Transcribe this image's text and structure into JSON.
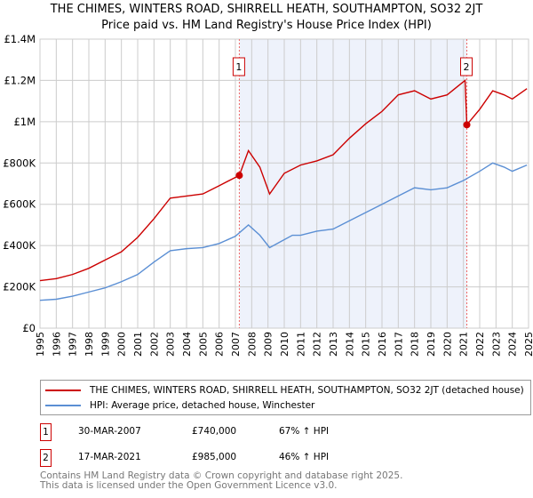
{
  "chart_data": {
    "type": "line",
    "title": "THE CHIMES, WINTERS ROAD, SHIRRELL HEATH, SOUTHAMPTON, SO32 2JT",
    "subtitle": "Price paid vs. HM Land Registry's House Price Index (HPI)",
    "xlim": [
      1995,
      2025
    ],
    "ylim": [
      0,
      1400000
    ],
    "yticks": [
      {
        "v": 0,
        "label": "£0"
      },
      {
        "v": 200000,
        "label": "£200K"
      },
      {
        "v": 400000,
        "label": "£400K"
      },
      {
        "v": 600000,
        "label": "£600K"
      },
      {
        "v": 800000,
        "label": "£800K"
      },
      {
        "v": 1000000,
        "label": "£1M"
      },
      {
        "v": 1200000,
        "label": "£1.2M"
      },
      {
        "v": 1400000,
        "label": "£1.4M"
      }
    ],
    "xticks": [
      "1995",
      "1996",
      "1997",
      "1998",
      "1999",
      "2000",
      "2001",
      "2002",
      "2003",
      "2004",
      "2005",
      "2006",
      "2007",
      "2008",
      "2009",
      "2010",
      "2011",
      "2012",
      "2013",
      "2014",
      "2015",
      "2016",
      "2017",
      "2018",
      "2019",
      "2020",
      "2021",
      "2022",
      "2023",
      "2024",
      "2025"
    ],
    "grid": true,
    "shaded_range": [
      2007.24,
      2021.21
    ],
    "series": [
      {
        "name": "THE CHIMES, WINTERS ROAD, SHIRRELL HEATH, SOUTHAMPTON, SO32 2JT (detached house)",
        "color": "#cc0000",
        "x": [
          1995,
          1996,
          1997,
          1998,
          1999,
          2000,
          2001,
          2002,
          2003,
          2004,
          2005,
          2006,
          2007.24,
          2007.8,
          2008.5,
          2009.1,
          2010,
          2011,
          2012,
          2013,
          2014,
          2015,
          2016,
          2017,
          2018,
          2019,
          2020,
          2021.1,
          2021.21,
          2022,
          2022.8,
          2023.5,
          2024,
          2024.9
        ],
        "y": [
          230000,
          240000,
          260000,
          290000,
          330000,
          370000,
          440000,
          530000,
          630000,
          640000,
          650000,
          690000,
          740000,
          860000,
          780000,
          650000,
          750000,
          790000,
          810000,
          840000,
          920000,
          990000,
          1050000,
          1130000,
          1150000,
          1110000,
          1130000,
          1200000,
          985000,
          1060000,
          1150000,
          1130000,
          1110000,
          1160000
        ]
      },
      {
        "name": "HPI: Average price, detached house, Winchester",
        "color": "#5b8fd4",
        "x": [
          1995,
          1996,
          1997,
          1998,
          1999,
          2000,
          2001,
          2002,
          2003,
          2004,
          2005,
          2006,
          2007,
          2007.8,
          2008.5,
          2009.1,
          2009.8,
          2010.5,
          2011,
          2012,
          2013,
          2014,
          2015,
          2016,
          2017,
          2018,
          2019,
          2020,
          2021,
          2022,
          2022.8,
          2023.5,
          2024,
          2024.9
        ],
        "y": [
          135000,
          140000,
          155000,
          175000,
          195000,
          225000,
          260000,
          320000,
          375000,
          385000,
          390000,
          410000,
          445000,
          500000,
          450000,
          390000,
          420000,
          450000,
          450000,
          470000,
          480000,
          520000,
          560000,
          600000,
          640000,
          680000,
          670000,
          680000,
          715000,
          760000,
          800000,
          780000,
          760000,
          790000
        ]
      }
    ],
    "annotations": [
      {
        "label": "1",
        "x": 2007.24,
        "y": 740000
      },
      {
        "label": "2",
        "x": 2021.21,
        "y": 985000
      }
    ]
  },
  "legend": [
    "THE CHIMES, WINTERS ROAD, SHIRRELL HEATH, SOUTHAMPTON, SO32 2JT (detached house)",
    "HPI: Average price, detached house, Winchester"
  ],
  "sales": [
    {
      "n": "1",
      "date": "30-MAR-2007",
      "price": "£740,000",
      "hpi": "67% ↑ HPI"
    },
    {
      "n": "2",
      "date": "17-MAR-2021",
      "price": "£985,000",
      "hpi": "46% ↑ HPI"
    }
  ],
  "footer": [
    "Contains HM Land Registry data © Crown copyright and database right 2025.",
    "This data is licensed under the Open Government Licence v3.0."
  ]
}
